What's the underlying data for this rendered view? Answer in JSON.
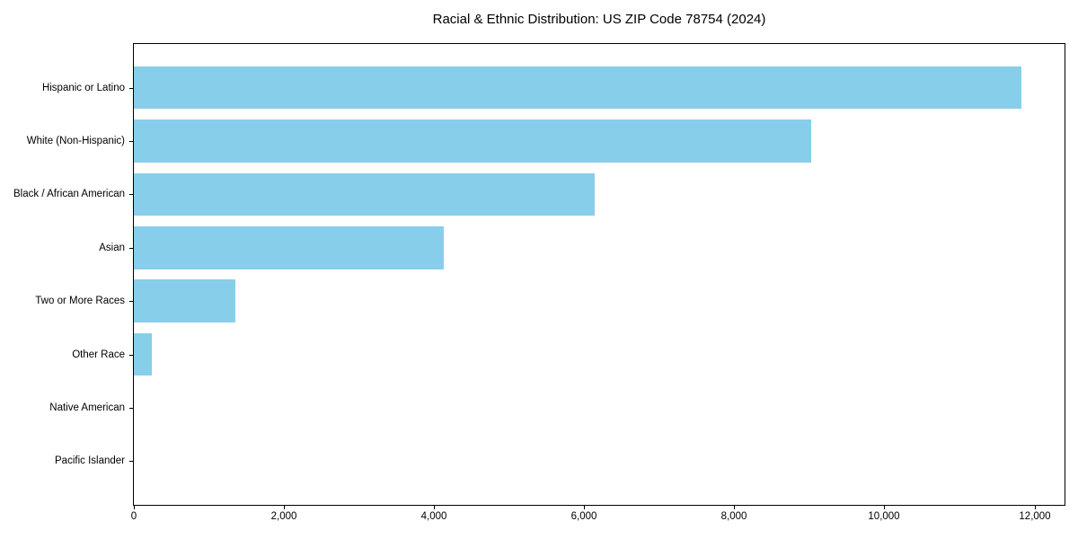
{
  "chart_data": {
    "type": "bar",
    "orientation": "horizontal",
    "title": "Racial & Ethnic Distribution: US ZIP Code 78754 (2024)",
    "categories": [
      "Hispanic or Latino",
      "White (Non-Hispanic)",
      "Black / African American",
      "Asian",
      "Two or More Races",
      "Other Race",
      "Native American",
      "Pacific Islander"
    ],
    "values": [
      11820,
      9030,
      6140,
      4130,
      1350,
      240,
      0,
      0
    ],
    "xlabel": "",
    "ylabel": "",
    "xlim": [
      0,
      12400
    ],
    "xticks": [
      0,
      2000,
      4000,
      6000,
      8000,
      10000,
      12000
    ],
    "xtick_labels": [
      "0",
      "2,000",
      "4,000",
      "6,000",
      "8,000",
      "10,000",
      "12,000"
    ],
    "bar_color": "#87CEEB",
    "axis_color": "#000000",
    "background_color": "#ffffff",
    "grid": false,
    "legend": null
  }
}
